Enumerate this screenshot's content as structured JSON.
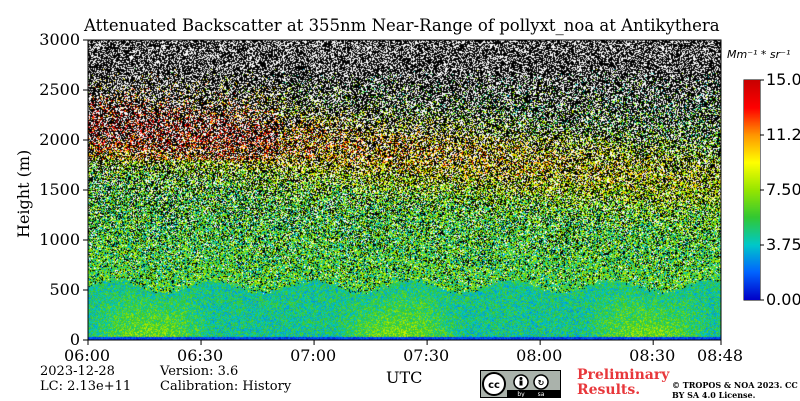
{
  "chart_data": {
    "type": "heatmap",
    "title": "Attenuated Backscatter at 355nm Near-Range of pollyxt_noa at Antikythera",
    "xlabel": "UTC",
    "ylabel": "Height (m)",
    "x_ticks": [
      "06:00",
      "06:30",
      "07:00",
      "07:30",
      "08:00",
      "08:30",
      "08:48"
    ],
    "x_range": [
      "06:00",
      "08:48"
    ],
    "y_ticks": [
      0,
      500,
      1000,
      1500,
      2000,
      2500,
      3000
    ],
    "ylim": [
      0,
      3000
    ],
    "colorbar": {
      "unit": "Mm⁻¹ * sr⁻¹",
      "ticks": [
        "0.00",
        "3.75",
        "7.50",
        "11.25",
        "15.00"
      ],
      "range": [
        0,
        15
      ],
      "colormap": [
        "#0000c8",
        "#0064ff",
        "#00c8c8",
        "#32c832",
        "#96e600",
        "#ffff00",
        "#ff9600",
        "#ff0000",
        "#c80000"
      ]
    },
    "features": {
      "boundary_layer_top_m": 520,
      "bad_value_color": "#000000",
      "missing_color": "#ffffff"
    }
  },
  "info": {
    "date": "2023-12-28",
    "lc": "LC: 2.13e+11",
    "version": "Version: 3.6",
    "calibration": "Calibration: History",
    "preliminary": "Preliminary Results.",
    "copyright": "© TROPOS & NOA 2023. CC BY SA 4.0 License.",
    "cc_badge": [
      "cc",
      "by",
      "sa"
    ]
  }
}
